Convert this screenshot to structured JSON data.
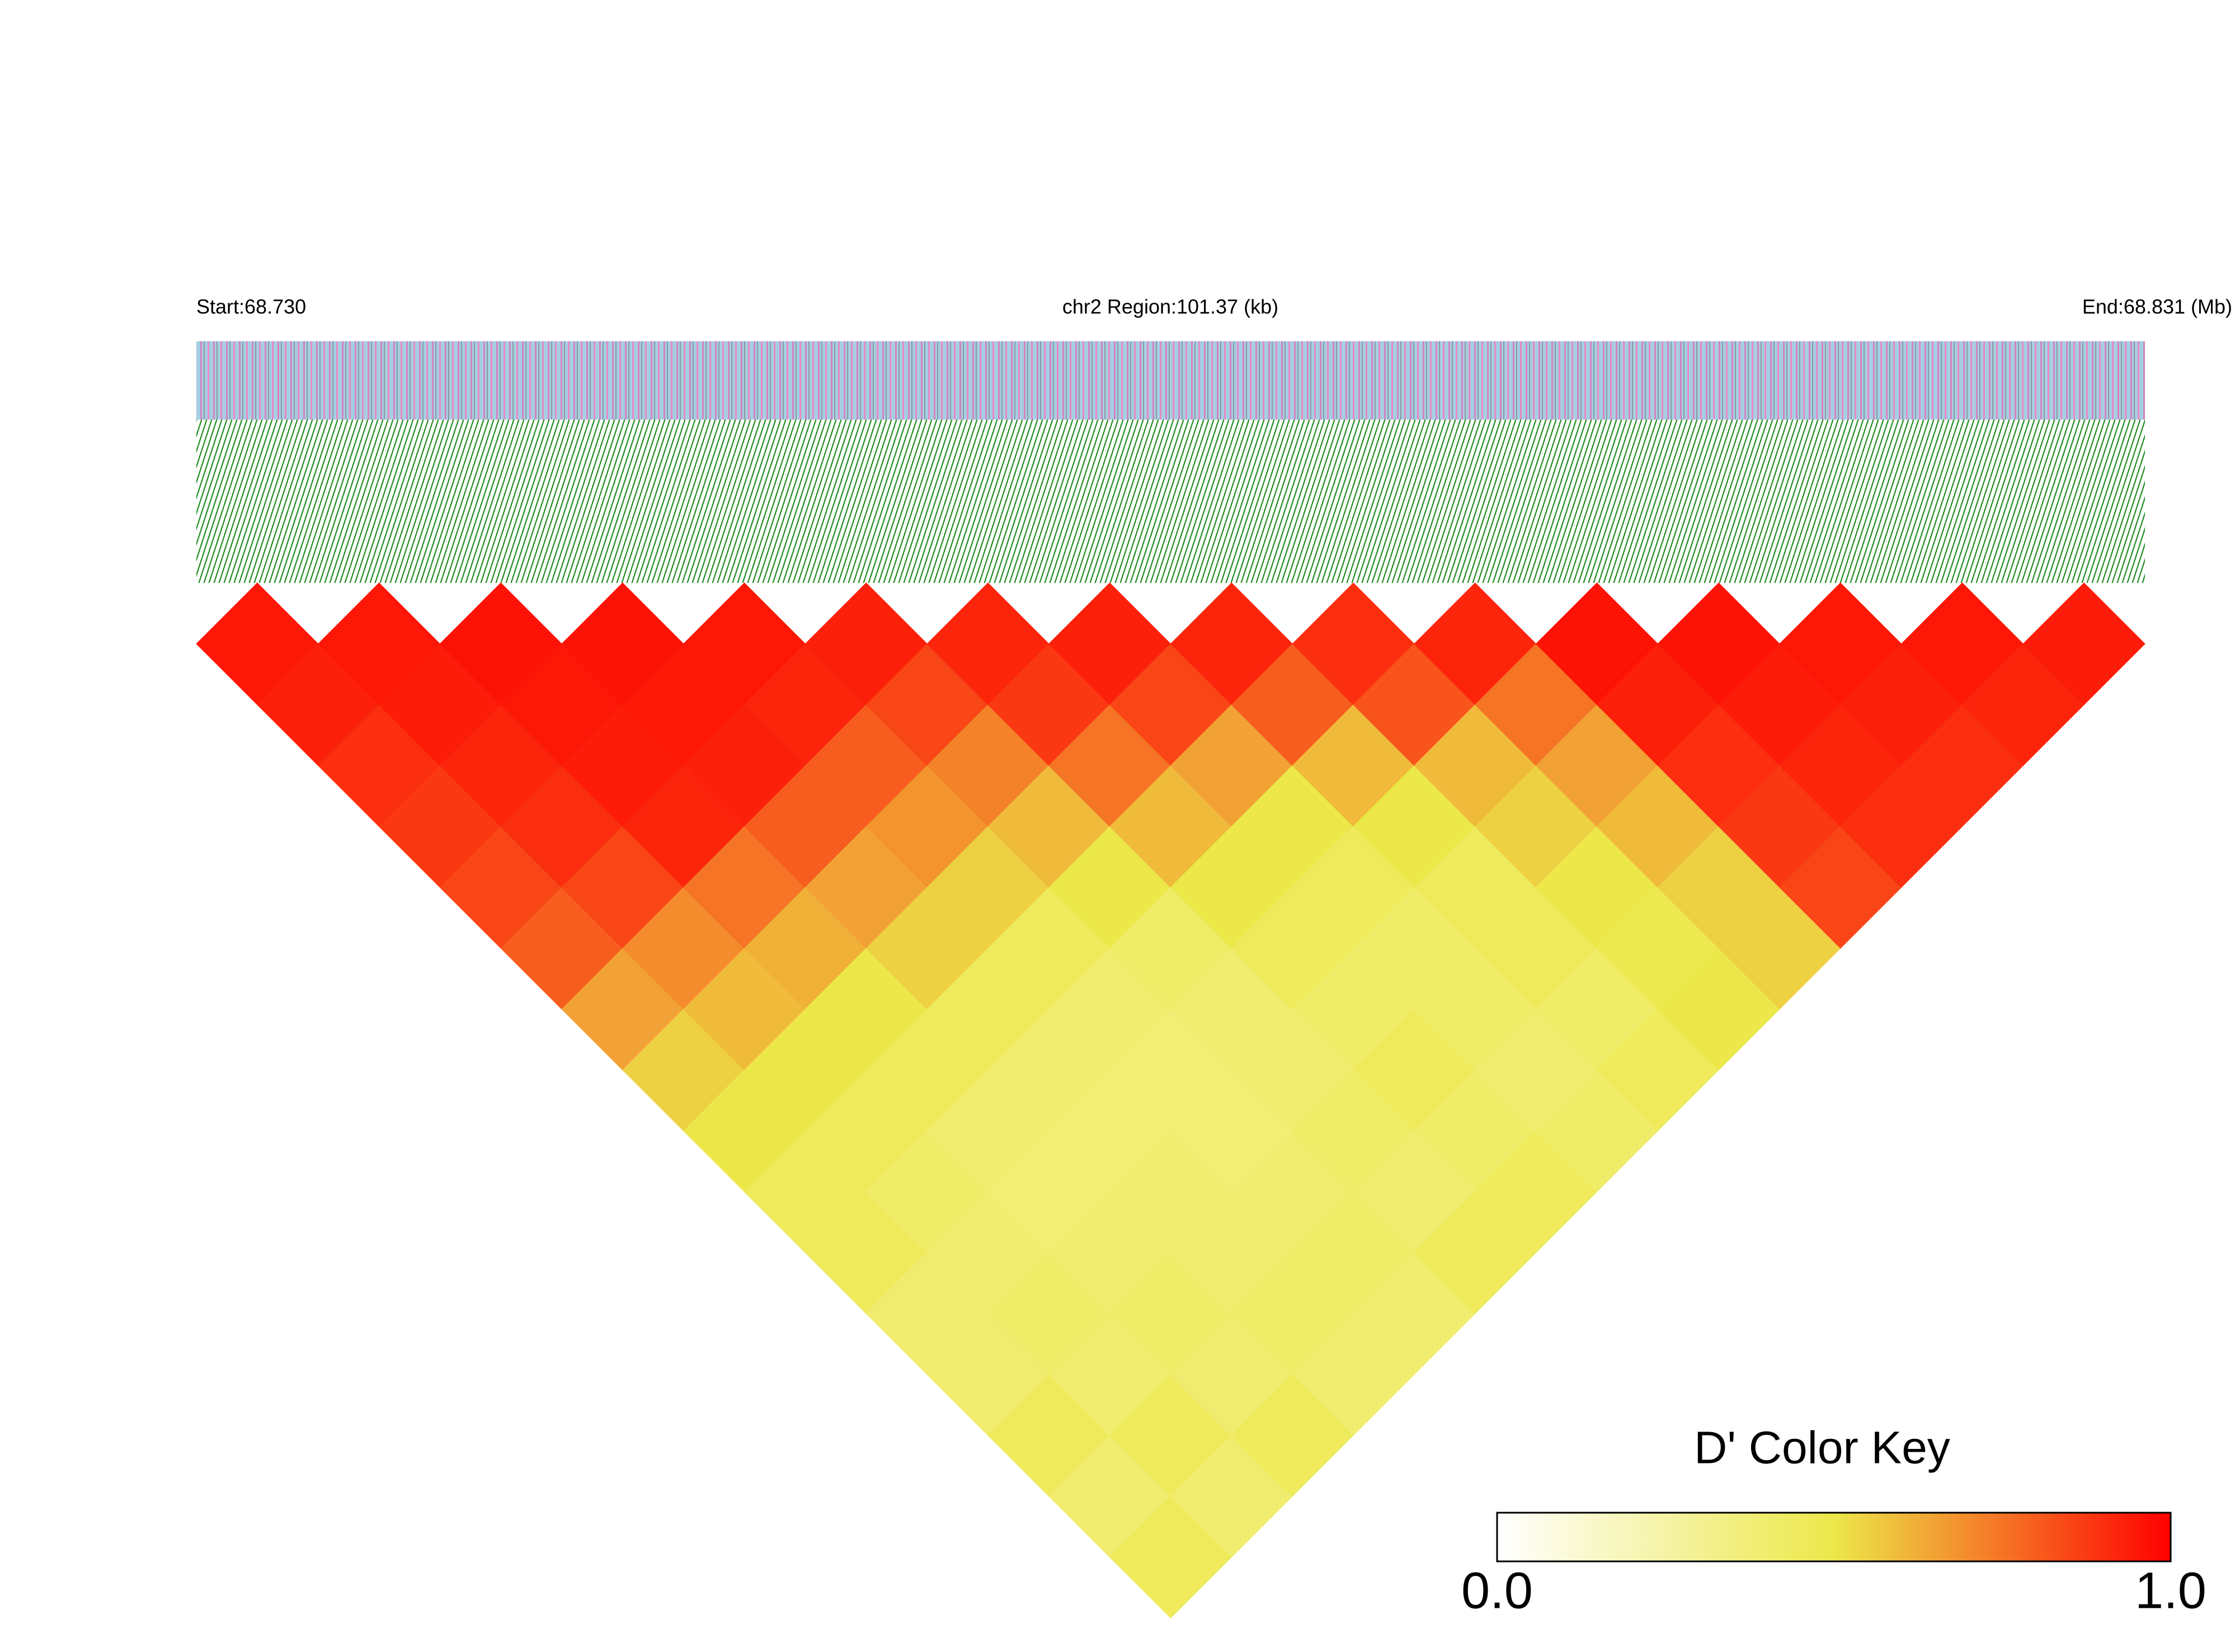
{
  "chart_data": {
    "type": "heatmap",
    "start_label": "Start:68.730",
    "region_label": "chr2 Region:101.37 (kb)",
    "end_label": "End:68.831 (Mb)",
    "matrix": [
      [
        0.95,
        0.93,
        0.9,
        0.88,
        0.85,
        0.8,
        0.65,
        0.55,
        0.5,
        0.45,
        0.45,
        0.4,
        0.4,
        0.45,
        0.4,
        0.45
      ],
      [
        0.95,
        0.94,
        0.92,
        0.9,
        0.85,
        0.7,
        0.6,
        0.5,
        0.45,
        0.42,
        0.4,
        0.42,
        0.4,
        0.45,
        0.4
      ],
      [
        0.96,
        0.95,
        0.94,
        0.92,
        0.75,
        0.62,
        0.5,
        0.45,
        0.4,
        0.38,
        0.4,
        0.42,
        0.4,
        0.45
      ],
      [
        0.96,
        0.95,
        0.93,
        0.8,
        0.65,
        0.55,
        0.45,
        0.4,
        0.38,
        0.4,
        0.4,
        0.42,
        0.4
      ],
      [
        0.95,
        0.92,
        0.8,
        0.68,
        0.55,
        0.45,
        0.4,
        0.38,
        0.38,
        0.4,
        0.42,
        0.4
      ],
      [
        0.93,
        0.85,
        0.72,
        0.6,
        0.5,
        0.42,
        0.4,
        0.4,
        0.42,
        0.4,
        0.45
      ],
      [
        0.92,
        0.88,
        0.75,
        0.6,
        0.5,
        0.45,
        0.42,
        0.45,
        0.42,
        0.45
      ],
      [
        0.93,
        0.85,
        0.65,
        0.5,
        0.45,
        0.42,
        0.42,
        0.4,
        0.42
      ],
      [
        0.92,
        0.8,
        0.6,
        0.5,
        0.45,
        0.45,
        0.42,
        0.45
      ],
      [
        0.9,
        0.82,
        0.6,
        0.55,
        0.5,
        0.48,
        0.5
      ],
      [
        0.92,
        0.75,
        0.65,
        0.6,
        0.55,
        0.55
      ],
      [
        0.96,
        0.93,
        0.9,
        0.88,
        0.85
      ],
      [
        0.96,
        0.94,
        0.92,
        0.9
      ],
      [
        0.95,
        0.93,
        0.9
      ],
      [
        0.95,
        0.92
      ],
      [
        0.94
      ]
    ],
    "colors": [
      "#ffffff",
      "#ece84a",
      "#ff0000"
    ],
    "colorbar": {
      "title": "D' Color Key",
      "lim": [
        0,
        1
      ],
      "ticks": [
        {
          "value": 0,
          "label": "0.0"
        },
        {
          "value": 1,
          "label": "1.0"
        }
      ]
    }
  }
}
